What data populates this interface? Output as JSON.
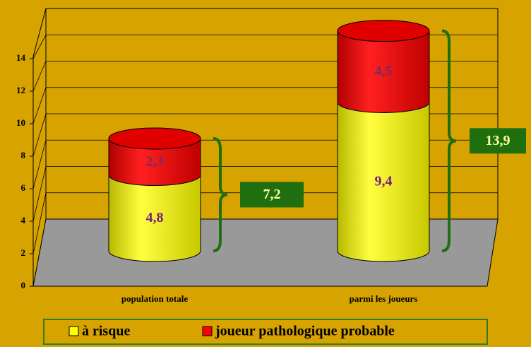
{
  "chart_data": {
    "type": "stacked_cylinder",
    "categories": [
      "population totale",
      "parmi les joueurs"
    ],
    "series": [
      {
        "name": "à risque",
        "color": "#ffff00",
        "values": [
          4.8,
          9.4
        ],
        "value_labels": [
          "4,8",
          "9,4"
        ]
      },
      {
        "name": "joueur pathologique probable",
        "color": "#ff0000",
        "values": [
          2.3,
          4.5
        ],
        "value_labels": [
          "2,3",
          "4,5"
        ]
      }
    ],
    "annotations": [
      "7,2",
      "13,9"
    ],
    "ylim": [
      0,
      16
    ],
    "yticks": [
      0,
      2,
      4,
      6,
      8,
      10,
      12,
      14
    ],
    "grid": true
  }
}
